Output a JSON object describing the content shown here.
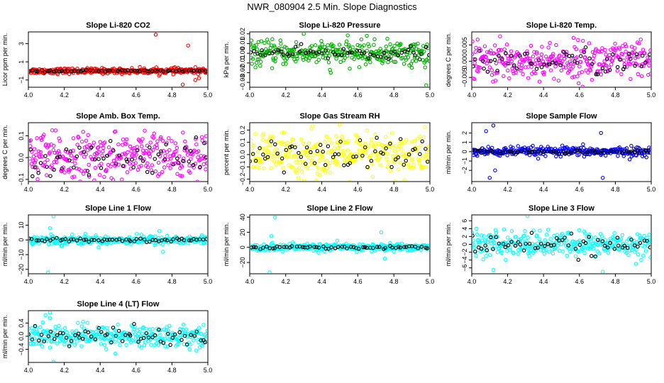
{
  "suptitle": "NWR_080904  2.5 Min. Slope Diagnostics",
  "chart_data": [
    {
      "type": "scatter",
      "title": "Slope Li-820 CO2",
      "ylabel": "Licor ppm per min.",
      "xlim": [
        4.0,
        5.0
      ],
      "ylim": [
        -1.8,
        4.3
      ],
      "xticks": [
        "4.0",
        "4.2",
        "4.4",
        "4.6",
        "4.8",
        "5.0"
      ],
      "yticks": [
        -1,
        1,
        3
      ],
      "ytick_labels": [
        "−1",
        "1",
        "3"
      ],
      "series": [
        {
          "color": "#ff0000",
          "center": 0,
          "spread": 0.15,
          "extremes": [
            [
              4.71,
              4.0
            ],
            [
              4.89,
              2.8
            ],
            [
              4.86,
              -1.5
            ],
            [
              4.93,
              -1.0
            ],
            [
              4.95,
              -0.8
            ]
          ]
        },
        {
          "color": "#000000",
          "center": 0,
          "spread": 0.05
        }
      ]
    },
    {
      "type": "scatter",
      "title": "Slope Li-820 Pressure",
      "ylabel": "kPa per min.",
      "xlim": [
        4.0,
        5.0
      ],
      "ylim": [
        -0.035,
        0.022
      ],
      "xticks": [
        "4.0",
        "4.2",
        "4.4",
        "4.6",
        "4.8",
        "5.0"
      ],
      "yticks": [
        -0.03,
        -0.02,
        -0.01,
        0.0,
        0.01,
        0.02
      ],
      "ytick_labels": [
        "−0.03",
        "−0.02",
        "−0.01",
        "0.00",
        "0.01",
        "0.02"
      ],
      "series": [
        {
          "color": "#00b000",
          "center": 0,
          "spread": 0.006,
          "extremes": [
            [
              4.3,
              0.02
            ],
            [
              4.65,
              0.018
            ],
            [
              4.98,
              -0.033
            ],
            [
              4.45,
              -0.02
            ],
            [
              4.9,
              -0.015
            ]
          ]
        },
        {
          "color": "#000000",
          "center": 0,
          "spread": 0.003
        }
      ]
    },
    {
      "type": "scatter",
      "title": "Slope Li-820 Temp.",
      "ylabel": "degrees C per min.",
      "xlim": [
        4.0,
        5.0
      ],
      "ylim": [
        -0.008,
        0.009
      ],
      "xticks": [
        "4.0",
        "4.2",
        "4.4",
        "4.6",
        "4.8",
        "5.0"
      ],
      "yticks": [
        -0.005,
        0.0,
        0.005
      ],
      "ytick_labels": [
        "−0.005",
        "0.000",
        "0.005"
      ],
      "series": [
        {
          "color": "#ff00ff",
          "center": 0,
          "spread": 0.003
        },
        {
          "color": "#000000",
          "center": 0,
          "spread": 0.002
        }
      ]
    },
    {
      "type": "scatter",
      "title": "Slope Amb. Box Temp.",
      "ylabel": "degrees C per min.",
      "xlim": [
        4.0,
        5.0
      ],
      "ylim": [
        -0.11,
        0.16
      ],
      "xticks": [
        "4.0",
        "4.2",
        "4.4",
        "4.6",
        "4.8",
        "5.0"
      ],
      "yticks": [
        -0.1,
        0.0,
        0.1
      ],
      "ytick_labels": [
        "−0.1",
        "0.0",
        "0.1"
      ],
      "series": [
        {
          "color": "#ff00ff",
          "center": 0,
          "spread": 0.055
        },
        {
          "color": "#000000",
          "center": 0,
          "spread": 0.04
        }
      ]
    },
    {
      "type": "scatter",
      "title": "Slope Gas Stream RH",
      "ylabel": "percent per min.",
      "xlim": [
        4.0,
        5.0
      ],
      "ylim": [
        -0.22,
        0.26
      ],
      "xticks": [
        "4.0",
        "4.2",
        "4.4",
        "4.6",
        "4.8",
        "5.0"
      ],
      "yticks": [
        -0.2,
        -0.1,
        0.0,
        0.1,
        0.2
      ],
      "ytick_labels": [
        "−0.2",
        "−0.1",
        "0.0",
        "0.1",
        "0.2"
      ],
      "series": [
        {
          "color": "#ffff00",
          "center": 0,
          "spread": 0.09
        },
        {
          "color": "#000000",
          "center": 0,
          "spread": 0.07
        }
      ]
    },
    {
      "type": "scatter",
      "title": "Slope Sample Flow",
      "ylabel": "ml/min per min.",
      "xlim": [
        4.0,
        5.0
      ],
      "ylim": [
        -3.2,
        3.1
      ],
      "xticks": [
        "4.0",
        "4.2",
        "4.4",
        "4.6",
        "4.8",
        "5.0"
      ],
      "yticks": [
        -2,
        -1,
        0,
        1,
        2
      ],
      "ytick_labels": [
        "−2",
        "−1",
        "0",
        "1",
        "2"
      ],
      "series": [
        {
          "color": "#0000ff",
          "center": 0,
          "spread": 0.25,
          "extremes": [
            [
              4.12,
              2.8
            ],
            [
              4.08,
              2.2
            ],
            [
              4.72,
              2.0
            ],
            [
              4.73,
              -2.8
            ],
            [
              4.1,
              -2.8
            ],
            [
              4.13,
              -2.0
            ]
          ]
        },
        {
          "color": "#000000",
          "center": 0,
          "spread": 0.1
        }
      ]
    },
    {
      "type": "scatter",
      "title": "Slope Line 1 Flow",
      "ylabel": "ml/min per min.",
      "xlim": [
        4.0,
        5.0
      ],
      "ylim": [
        -23,
        17
      ],
      "xticks": [
        "4.0",
        "4.2",
        "4.4",
        "4.6",
        "4.8",
        "5.0"
      ],
      "yticks": [
        -20,
        -10,
        0,
        10
      ],
      "ytick_labels": [
        "−20",
        "−10",
        "0",
        "10"
      ],
      "series": [
        {
          "color": "#00ffff",
          "center": 0,
          "spread": 1.5,
          "extremes": [
            [
              4.14,
              16
            ],
            [
              4.11,
              -22
            ],
            [
              4.12,
              8
            ],
            [
              4.75,
              -8
            ],
            [
              4.73,
              6
            ]
          ]
        },
        {
          "color": "#000000",
          "center": 0,
          "spread": 0.5
        }
      ]
    },
    {
      "type": "scatter",
      "title": "Slope Line 2 Flow",
      "ylabel": "ml/min per min.",
      "xlim": [
        4.0,
        5.0
      ],
      "ylim": [
        -35,
        43
      ],
      "xticks": [
        "4.0",
        "4.2",
        "4.4",
        "4.6",
        "4.8",
        "5.0"
      ],
      "yticks": [
        -20,
        0,
        20,
        40
      ],
      "ytick_labels": [
        "−20",
        "0",
        "20",
        "40"
      ],
      "series": [
        {
          "color": "#00ffff",
          "center": 0,
          "spread": 2.5,
          "extremes": [
            [
              4.14,
              40
            ],
            [
              4.11,
              -33
            ],
            [
              4.12,
              15
            ],
            [
              4.73,
              20
            ],
            [
              4.75,
              -15
            ]
          ]
        },
        {
          "color": "#000000",
          "center": 0,
          "spread": 1.0
        }
      ]
    },
    {
      "type": "scatter",
      "title": "Slope Line 3 Flow",
      "ylabel": "ml/min per min.",
      "xlim": [
        4.0,
        5.0
      ],
      "ylim": [
        -7.5,
        7.5
      ],
      "xticks": [
        "4.0",
        "4.2",
        "4.4",
        "4.6",
        "4.8",
        "5.0"
      ],
      "yticks": [
        -6,
        -4,
        -2,
        0,
        2,
        4,
        6
      ],
      "ytick_labels": [
        "−6",
        "−4",
        "−2",
        "0",
        "2",
        "4",
        "6"
      ],
      "series": [
        {
          "color": "#00ffff",
          "center": 0,
          "spread": 1.6,
          "extremes": [
            [
              4.31,
              7.3
            ],
            [
              4.73,
              -7.0
            ],
            [
              4.12,
              -6.5
            ]
          ]
        },
        {
          "color": "#000000",
          "center": 0,
          "spread": 1.3
        }
      ]
    },
    {
      "type": "scatter",
      "title": "Slope Line 4 (LT) Flow",
      "ylabel": "ml/min per min.",
      "xlim": [
        4.0,
        5.0
      ],
      "ylim": [
        -0.8,
        0.78
      ],
      "xticks": [
        "4.0",
        "4.2",
        "4.4",
        "4.6",
        "4.8",
        "5.0"
      ],
      "yticks": [
        -0.4,
        0.0,
        0.4
      ],
      "ytick_labels": [
        "−0.4",
        "0.0",
        "0.4"
      ],
      "series": [
        {
          "color": "#00ffff",
          "center": 0,
          "spread": 0.17,
          "extremes": [
            [
              4.12,
              0.72
            ],
            [
              4.14,
              -0.78
            ],
            [
              4.12,
              0.55
            ]
          ]
        },
        {
          "color": "#000000",
          "center": 0,
          "spread": 0.15
        }
      ]
    }
  ]
}
